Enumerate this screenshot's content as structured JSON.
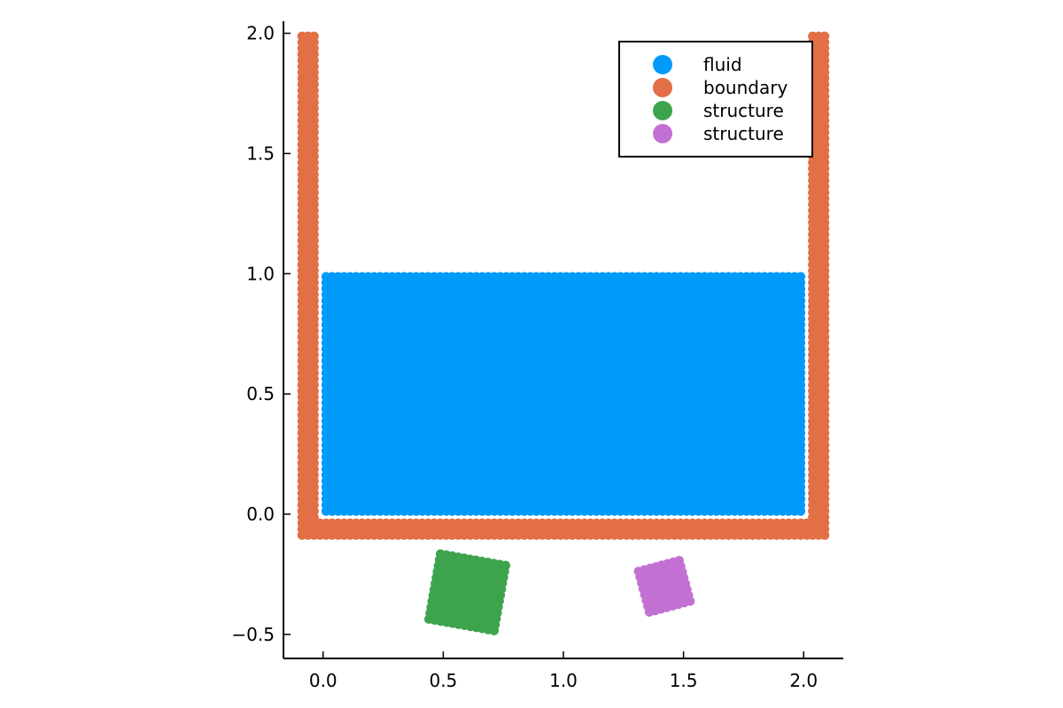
{
  "chart_data": {
    "type": "scatter",
    "title": "",
    "xlabel": "",
    "ylabel": "",
    "xlim": [
      -0.165,
      2.165
    ],
    "ylim": [
      -0.6,
      2.05
    ],
    "aspect": "equal",
    "grid": false,
    "legend_position": "top-right",
    "x_ticks": [
      {
        "value": 0.0,
        "label": "0.0"
      },
      {
        "value": 0.5,
        "label": "0.5"
      },
      {
        "value": 1.0,
        "label": "1.0"
      },
      {
        "value": 1.5,
        "label": "1.5"
      },
      {
        "value": 2.0,
        "label": "2.0"
      }
    ],
    "y_ticks": [
      {
        "value": -0.5,
        "label": "−0.5"
      },
      {
        "value": 0.0,
        "label": "0.0"
      },
      {
        "value": 0.5,
        "label": "0.5"
      },
      {
        "value": 1.0,
        "label": "1.0"
      },
      {
        "value": 1.5,
        "label": "1.5"
      },
      {
        "value": 2.0,
        "label": "2.0"
      }
    ],
    "series": [
      {
        "name": "fluid",
        "color": "#009AFA",
        "shape": "grid",
        "spacing": 0.025,
        "x_start": 0.0125,
        "x_count": 80,
        "y_start": 0.0125,
        "y_count": 40
      },
      {
        "name": "boundary",
        "color": "#E26F46",
        "shape": "tank",
        "spacing": 0.025,
        "layers": 3,
        "x_left_wall": [
          -0.0875,
          -0.0625,
          -0.0375
        ],
        "x_right_wall": [
          2.0375,
          2.0625,
          2.0875
        ],
        "y_bottom_rows": [
          -0.0875,
          -0.0625,
          -0.0375
        ],
        "y_top": 1.9875
      },
      {
        "name": "structure",
        "color": "#3DA44D",
        "shape": "rotated_grid",
        "center": [
          0.6,
          -0.325
        ],
        "side": 0.3,
        "count": 12,
        "rotation_deg": -10
      },
      {
        "name": "structure",
        "color": "#C271D2",
        "shape": "rotated_grid",
        "center": [
          1.42,
          -0.3
        ],
        "side": 0.2,
        "count": 8,
        "rotation_deg": 15
      }
    ]
  }
}
